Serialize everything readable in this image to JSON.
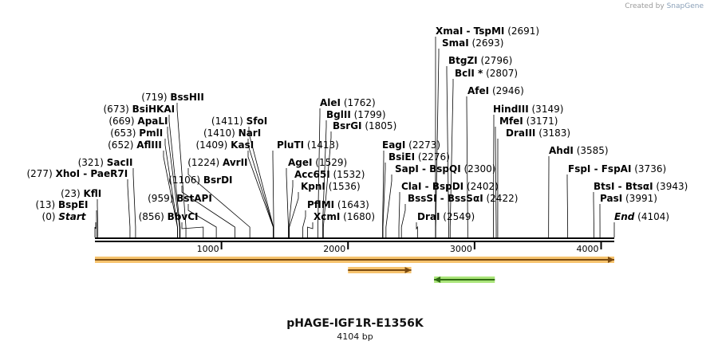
{
  "watermark": {
    "prefix": "Created by",
    "brand": "SnapGene"
  },
  "plasmid": {
    "name": "pHAGE-IGF1R-E1356K",
    "length_label": "4104 bp",
    "length": 4104
  },
  "axis_ticks": [
    {
      "value": 1000,
      "label": "1000"
    },
    {
      "value": 2000,
      "label": "2000"
    },
    {
      "value": 3000,
      "label": "3000"
    },
    {
      "value": 4000,
      "label": "4000"
    }
  ],
  "features": [
    {
      "name": "orange-feature-1",
      "start": 0,
      "end": 4104,
      "direction": "forward",
      "color": "#f5b955",
      "stroke": "#7a4a10"
    },
    {
      "name": "orange-feature-2",
      "start": 2000,
      "end": 2500,
      "direction": "forward",
      "color": "#f5b955",
      "stroke": "#7a4a10"
    },
    {
      "name": "green-feature",
      "start": 2680,
      "end": 3160,
      "direction": "reverse",
      "color": "#9be063",
      "stroke": "#2f6b12"
    }
  ],
  "sites": [
    {
      "name": "Start",
      "pos": 0,
      "pos_label": "(0)",
      "italic": true
    },
    {
      "name": "BspEI",
      "pos": 13,
      "pos_label": "(13)"
    },
    {
      "name": "KflI",
      "pos": 23,
      "pos_label": "(23)"
    },
    {
      "name": "XhoI",
      "name2": "PaeR7I",
      "pos": 277,
      "pos_label": "(277)"
    },
    {
      "name": "SacII",
      "pos": 321,
      "pos_label": "(321)"
    },
    {
      "name": "AflIII",
      "pos": 652,
      "pos_label": "(652)"
    },
    {
      "name": "PmlI",
      "pos": 653,
      "pos_label": "(653)"
    },
    {
      "name": "ApaLI",
      "pos": 669,
      "pos_label": "(669)"
    },
    {
      "name": "BsiHKAI",
      "pos": 673,
      "pos_label": "(673)"
    },
    {
      "name": "BssHII",
      "pos": 719,
      "pos_label": "(719)"
    },
    {
      "name": "BbvCI",
      "pos": 856,
      "pos_label": "(856)"
    },
    {
      "name": "BstAPI",
      "pos": 959,
      "pos_label": "(959)"
    },
    {
      "name": "BsrDI",
      "pos": 1106,
      "pos_label": "(1106)"
    },
    {
      "name": "AvrII",
      "pos": 1224,
      "pos_label": "(1224)"
    },
    {
      "name": "KasI",
      "pos": 1409,
      "pos_label": "(1409)"
    },
    {
      "name": "NarI",
      "pos": 1410,
      "pos_label": "(1410)"
    },
    {
      "name": "SfoI",
      "pos": 1411,
      "pos_label": "(1411)"
    },
    {
      "name": "PluTI",
      "pos": 1413,
      "pos_label": "(1413)"
    },
    {
      "name": "AgeI",
      "pos": 1529,
      "pos_label": "(1529)"
    },
    {
      "name": "Acc65I",
      "pos": 1532,
      "pos_label": "(1532)"
    },
    {
      "name": "KpnI",
      "pos": 1536,
      "pos_label": "(1536)"
    },
    {
      "name": "PflMI",
      "pos": 1643,
      "pos_label": "(1643)"
    },
    {
      "name": "XcmI",
      "pos": 1680,
      "pos_label": "(1680)"
    },
    {
      "name": "AleI",
      "pos": 1762,
      "pos_label": "(1762)"
    },
    {
      "name": "BglII",
      "pos": 1799,
      "pos_label": "(1799)"
    },
    {
      "name": "BsrGI",
      "pos": 1805,
      "pos_label": "(1805)"
    },
    {
      "name": "EagI",
      "pos": 2273,
      "pos_label": "(2273)"
    },
    {
      "name": "BsiEI",
      "pos": 2276,
      "pos_label": "(2276)"
    },
    {
      "name": "SapI",
      "name2": "BspQI",
      "pos": 2300,
      "pos_label": "(2300)"
    },
    {
      "name": "ClaI",
      "name2": "BspDI",
      "pos": 2402,
      "pos_label": "(2402)"
    },
    {
      "name": "BssSI",
      "name2": "BssSαI",
      "pos": 2422,
      "pos_label": "(2422)"
    },
    {
      "name": "DraI",
      "pos": 2549,
      "pos_label": "(2549)"
    },
    {
      "name": "XmaI",
      "name2": "TspMI",
      "pos": 2691,
      "pos_label": "(2691)"
    },
    {
      "name": "SmaI",
      "pos": 2693,
      "pos_label": "(2693)"
    },
    {
      "name": "BtgZI",
      "pos": 2796,
      "pos_label": "(2796)"
    },
    {
      "name": "BclI *",
      "pos": 2807,
      "pos_label": "(2807)"
    },
    {
      "name": "AfeI",
      "pos": 2946,
      "pos_label": "(2946)"
    },
    {
      "name": "HindIII",
      "pos": 3149,
      "pos_label": "(3149)"
    },
    {
      "name": "MfeI",
      "pos": 3171,
      "pos_label": "(3171)"
    },
    {
      "name": "DraIII",
      "pos": 3183,
      "pos_label": "(3183)"
    },
    {
      "name": "AhdI",
      "pos": 3585,
      "pos_label": "(3585)"
    },
    {
      "name": "FspI",
      "name2": "FspAI",
      "pos": 3736,
      "pos_label": "(3736)"
    },
    {
      "name": "BtsI",
      "name2": "BtsαI",
      "pos": 3943,
      "pos_label": "(3943)"
    },
    {
      "name": "PasI",
      "pos": 3991,
      "pos_label": "(3991)"
    },
    {
      "name": "End",
      "pos": 4104,
      "pos_label": "(4104)",
      "italic": true
    }
  ]
}
